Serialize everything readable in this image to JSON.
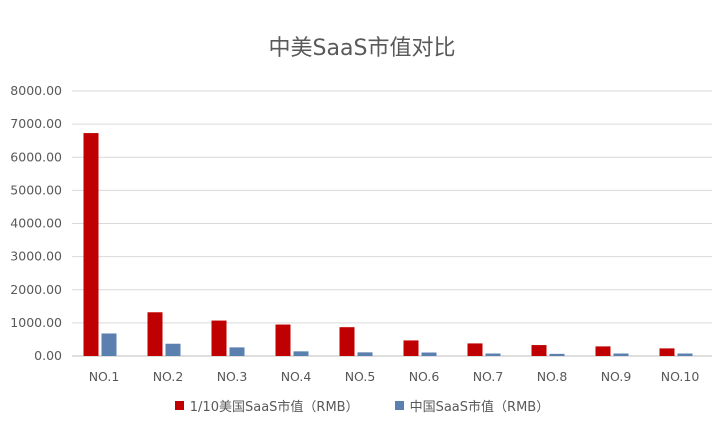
{
  "chart_data": {
    "type": "bar",
    "title": "中美SaaS市值对比",
    "categories": [
      "NO.1",
      "NO.2",
      "NO.3",
      "NO.4",
      "NO.5",
      "NO.6",
      "NO.7",
      "NO.8",
      "NO.9",
      "NO.10"
    ],
    "ylim": [
      0,
      8000
    ],
    "yticks": [
      "0.00",
      "1000.00",
      "2000.00",
      "3000.00",
      "4000.00",
      "5000.00",
      "6000.00",
      "7000.00",
      "8000.00"
    ],
    "grid": true,
    "legend_position": "bottom",
    "series": [
      {
        "name": "1/10美国SaaS市值（RMB）",
        "color": "#C00000",
        "values": [
          6730,
          1320,
          1070,
          950,
          870,
          470,
          380,
          330,
          290,
          230
        ]
      },
      {
        "name": "中国SaaS市值（RMB）",
        "color": "#5B7FAE",
        "values": [
          680,
          370,
          260,
          140,
          110,
          105,
          75,
          65,
          75,
          75
        ]
      }
    ]
  }
}
